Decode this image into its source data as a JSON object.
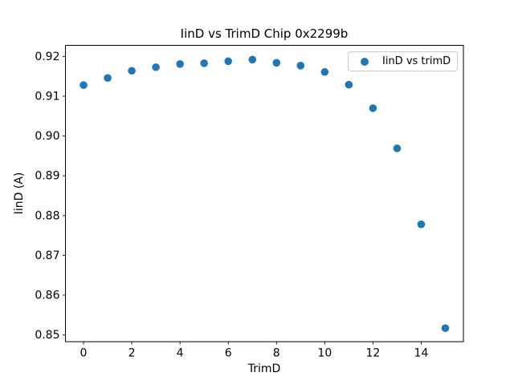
{
  "chart_data": {
    "type": "scatter",
    "title": "IinD vs TrimD Chip 0x2299b",
    "xlabel": "TrimD",
    "ylabel": "IinD (A)",
    "xlim": [
      -0.75,
      15.75
    ],
    "ylim": [
      0.8483,
      0.9228
    ],
    "xticks": [
      0,
      2,
      4,
      6,
      8,
      10,
      12,
      14
    ],
    "xtick_labels": [
      "0",
      "2",
      "4",
      "6",
      "8",
      "10",
      "12",
      "14"
    ],
    "yticks": [
      0.85,
      0.86,
      0.87,
      0.88,
      0.89,
      0.9,
      0.91,
      0.92
    ],
    "ytick_labels": [
      "0.85",
      "0.86",
      "0.87",
      "0.88",
      "0.89",
      "0.90",
      "0.91",
      "0.92"
    ],
    "grid": false,
    "legend_position": "upper right",
    "marker_size_px": 9.6,
    "axes_color": "#000000",
    "background_color": "#ffffff",
    "series": [
      {
        "name": "IinD vs trimD",
        "color": "#1f77b4",
        "x": [
          0,
          1,
          2,
          3,
          4,
          5,
          6,
          7,
          8,
          9,
          10,
          11,
          12,
          13,
          14,
          15
        ],
        "y": [
          0.9128,
          0.9146,
          0.9164,
          0.9173,
          0.9181,
          0.9183,
          0.9188,
          0.9192,
          0.9184,
          0.9177,
          0.9161,
          0.9129,
          0.907,
          0.8969,
          0.8778,
          0.8517
        ]
      }
    ]
  }
}
